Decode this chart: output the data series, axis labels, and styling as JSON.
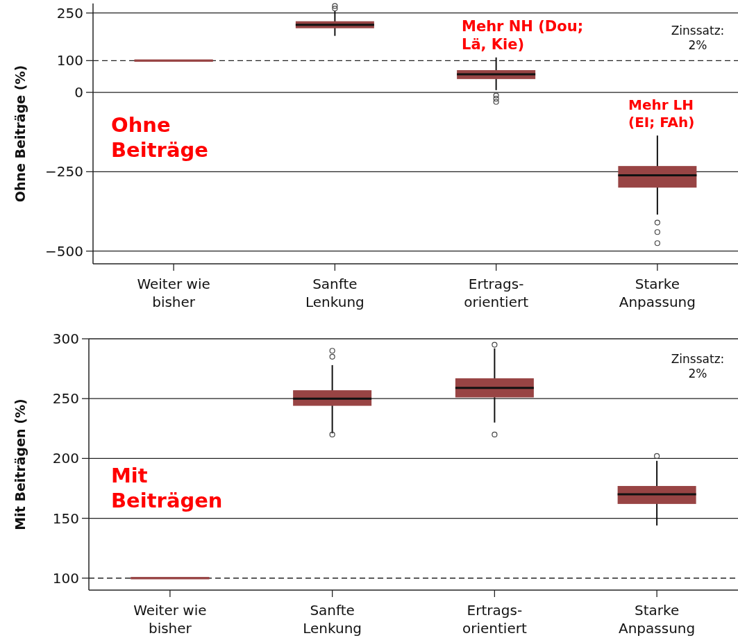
{
  "chart_data": [
    {
      "type": "box",
      "ylabel": "Ohne Beiträge (%)",
      "categories": [
        "Weiter wie bisher",
        "Sanfte Lenkung",
        "Ertrags-orientiert",
        "Starke Anpassung"
      ],
      "ylim": [
        -540,
        280
      ],
      "yticks": [
        -500,
        -250,
        0,
        100,
        250
      ],
      "grid": "y",
      "ref_lines": [
        {
          "axis": "y",
          "value": 100,
          "line_style": "dashed"
        }
      ],
      "series": [
        {
          "color": "#984444",
          "boxes": [
            {
              "low": 100,
              "q1": 100,
              "median": 100,
              "q3": 100,
              "high": 100
            },
            {
              "low": 178,
              "q1": 202,
              "median": 213,
              "q3": 224,
              "high": 257,
              "outliers": [
                264,
                272
              ]
            },
            {
              "low": 7,
              "q1": 42,
              "median": 57,
              "q3": 70,
              "high": 110,
              "outliers": [
                -10,
                -20,
                -30
              ]
            },
            {
              "low": -385,
              "q1": -300,
              "median": -261,
              "q3": -232,
              "high": -136,
              "outliers": [
                -410,
                -440,
                -475
              ]
            }
          ]
        }
      ],
      "annotations": [
        "Mehr NH (Dou;\nLä, Kie)",
        "Zinssatz:\n2%",
        "Mehr LH\n(EI; FAh)",
        "Ohne\nBeiträge"
      ]
    },
    {
      "type": "box",
      "ylabel": "Mit Beiträgen (%)",
      "categories": [
        "Weiter wie bisher",
        "Sanfte Lenkung",
        "Ertrags-orientiert",
        "Starke Anpassung"
      ],
      "ylim": [
        90,
        300
      ],
      "yticks": [
        100,
        150,
        200,
        250,
        300
      ],
      "grid": "y",
      "ref_lines": [
        {
          "axis": "y",
          "value": 100,
          "line_style": "dashed"
        }
      ],
      "series": [
        {
          "color": "#984444",
          "boxes": [
            {
              "low": 100,
              "q1": 100,
              "median": 100,
              "q3": 100,
              "high": 100
            },
            {
              "low": 221,
              "q1": 244,
              "median": 250,
              "q3": 257,
              "high": 278,
              "outliers": [
                220,
                285,
                290
              ]
            },
            {
              "low": 230,
              "q1": 251,
              "median": 259,
              "q3": 267,
              "high": 292,
              "outliers": [
                220,
                295
              ]
            },
            {
              "low": 144,
              "q1": 162,
              "median": 170,
              "q3": 177,
              "high": 198,
              "outliers": [
                202
              ]
            }
          ]
        }
      ],
      "annotations": [
        "Zinssatz:\n2%",
        "Mit\nBeiträgen"
      ]
    }
  ]
}
